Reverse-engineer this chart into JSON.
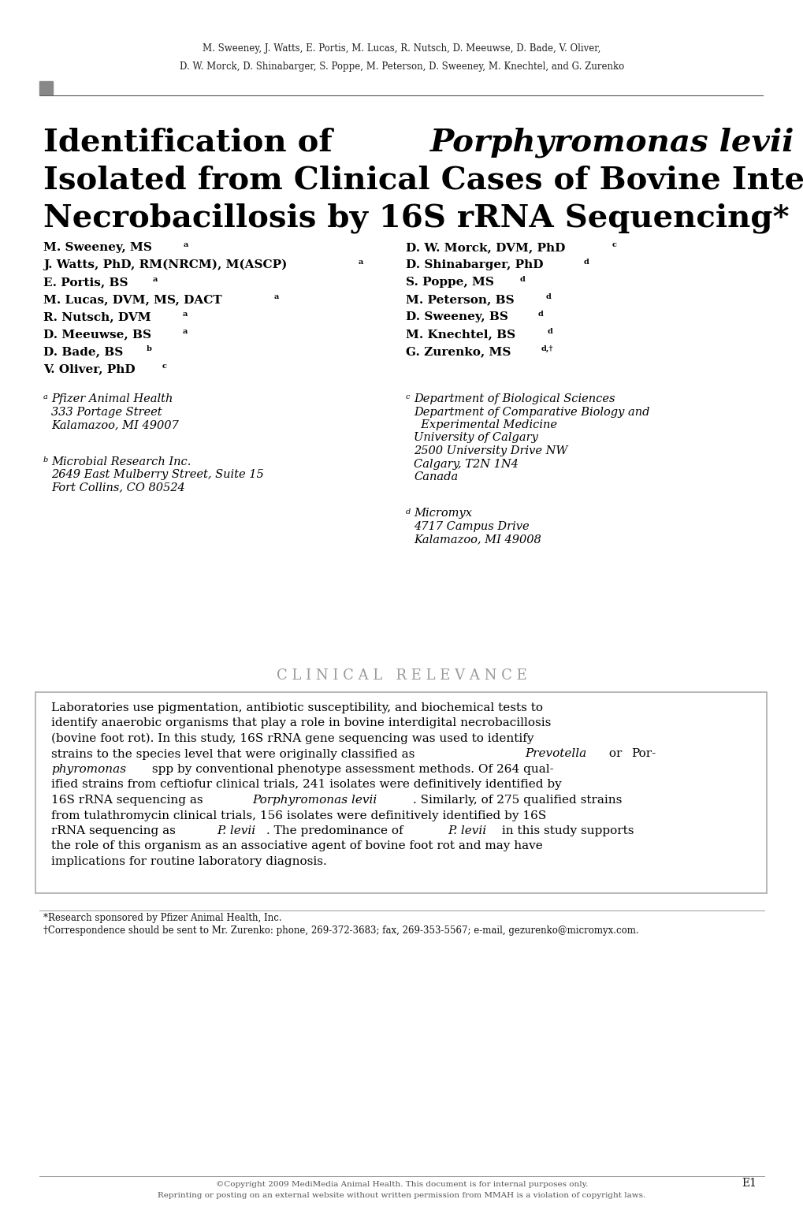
{
  "bg_color": "#ffffff",
  "header_line1": "M. Sweeney, J. Watts, E. Portis, M. Lucas, R. Nutsch, D. Meeuwse, D. Bade, V. Oliver,",
  "header_line2": "D. W. Morck, D. Shinabarger, S. Poppe, M. Peterson, D. Sweeney, M. Knechtel, and G. Zurenko",
  "authors_left": [
    {
      "text": "M. Sweeney, MS",
      "sup": "a"
    },
    {
      "text": "J. Watts, PhD, RM(NRCM), M(ASCP)",
      "sup": "a"
    },
    {
      "text": "E. Portis, BS",
      "sup": "a"
    },
    {
      "text": "M. Lucas, DVM, MS, DACT",
      "sup": "a"
    },
    {
      "text": "R. Nutsch, DVM",
      "sup": "a"
    },
    {
      "text": "D. Meeuwse, BS",
      "sup": "a"
    },
    {
      "text": "D. Bade, BS",
      "sup": "b"
    },
    {
      "text": "V. Oliver, PhD",
      "sup": "c"
    }
  ],
  "authors_right": [
    {
      "text": "D. W. Morck, DVM, PhD",
      "sup": "c"
    },
    {
      "text": "D. Shinabarger, PhD",
      "sup": "d"
    },
    {
      "text": "S. Poppe, MS",
      "sup": "d"
    },
    {
      "text": "M. Peterson, BS",
      "sup": "d"
    },
    {
      "text": "D. Sweeney, BS",
      "sup": "d"
    },
    {
      "text": "M. Knechtel, BS",
      "sup": "d"
    },
    {
      "text": "G. Zurenko, MS",
      "sup": "d,†"
    }
  ],
  "affil_left": [
    {
      "sup": "a",
      "lines": [
        "Pfizer Animal Health",
        "333 Portage Street",
        "Kalamazoo, MI 49007"
      ]
    },
    {
      "sup": "b",
      "lines": [
        "Microbial Research Inc.",
        "2649 East Mulberry Street, Suite 15",
        "Fort Collins, CO 80524"
      ]
    }
  ],
  "affil_right": [
    {
      "sup": "c",
      "lines": [
        "Department of Biological Sciences",
        "Department of Comparative Biology and",
        "  Experimental Medicine",
        "University of Calgary",
        "2500 University Drive NW",
        "Calgary, T2N 1N4",
        "Canada"
      ]
    },
    {
      "sup": "d",
      "lines": [
        "Micromyx",
        "4717 Campus Drive",
        "Kalamazoo, MI 49008"
      ]
    }
  ],
  "cr_header": "C L I N I C A L   R E L E V A N C E",
  "cr_lines": [
    [
      [
        "Laboratories use pigmentation, antibiotic susceptibility, and biochemical tests to",
        false
      ]
    ],
    [
      [
        "identify anaerobic organisms that play a role in bovine interdigital necrobacillosis",
        false
      ]
    ],
    [
      [
        "(bovine foot rot). In this study, 16S rRNA gene sequencing was used to identify",
        false
      ]
    ],
    [
      [
        "strains to the species level that were originally classified as ",
        false
      ],
      [
        "Prevotella",
        true
      ],
      [
        " or ",
        false
      ],
      [
        "Por-",
        false
      ]
    ],
    [
      [
        "phyromonas",
        true
      ],
      [
        " spp by conventional phenotype assessment methods. Of 264 qual-",
        false
      ]
    ],
    [
      [
        "ified strains from ceftiofur clinical trials, 241 isolates were definitively identified by",
        false
      ]
    ],
    [
      [
        "16S rRNA sequencing as ",
        false
      ],
      [
        "Porphyromonas levii",
        true
      ],
      [
        ". Similarly, of 275 qualified strains",
        false
      ]
    ],
    [
      [
        "from tulathromycin clinical trials, 156 isolates were definitively identified by 16S",
        false
      ]
    ],
    [
      [
        "rRNA sequencing as ",
        false
      ],
      [
        "P. levii",
        true
      ],
      [
        ". The predominance of ",
        false
      ],
      [
        "P. levii",
        true
      ],
      [
        " in this study supports",
        false
      ]
    ],
    [
      [
        "the role of this organism as an associative agent of bovine foot rot and may have",
        false
      ]
    ],
    [
      [
        "implications for routine laboratory diagnosis.",
        false
      ]
    ]
  ],
  "footnote1": "*Research sponsored by Pfizer Animal Health, Inc.",
  "footnote2": "†Correspondence should be sent to Mr. Zurenko: phone, 269-372-3683; fax, 269-353-5567; e-mail, gezurenko@micromyx.com.",
  "copyright1": "©Copyright 2009 MediMedia Animal Health. This document is for internal purposes only.",
  "copyright2": "Reprinting or posting on an external website without written permission from MMAH is a violation of copyright laws.",
  "page_num": "E1"
}
